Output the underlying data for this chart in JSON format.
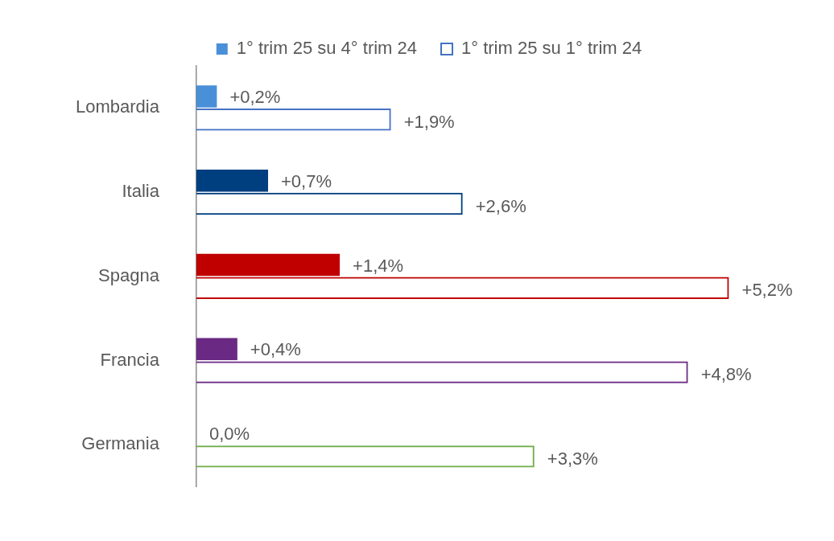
{
  "chart_data": {
    "type": "bar",
    "orientation": "horizontal",
    "legend": "top",
    "grid": false,
    "data_labels": true,
    "categories": [
      "Lombardia",
      "Italia",
      "Spagna",
      "Francia",
      "Germania"
    ],
    "series": [
      {
        "name": "1° trim 25 su 4° trim 24",
        "color": "#4a90d9",
        "colors": [
          "#4a90d9",
          "#003f7f",
          "#c00000",
          "#6a2a84",
          "#70ad47"
        ],
        "values": [
          0.2,
          0.7,
          1.4,
          0.4,
          0.0
        ],
        "value_labels": [
          "+0,2%",
          "+0,7%",
          "+1,4%",
          "+0,4%",
          "0,0%"
        ]
      },
      {
        "name": "1° trim 25 su 1° trim 24",
        "color": "#4472c4",
        "colors": [
          "#4472c4",
          "#003f7f",
          "#c00000",
          "#6a2a84",
          "#70ad47"
        ],
        "values": [
          1.9,
          2.6,
          5.2,
          4.8,
          3.3
        ],
        "value_labels": [
          "+1,9%",
          "+2,6%",
          "+5,2%",
          "+4,8%",
          "+3,3%"
        ]
      }
    ]
  }
}
